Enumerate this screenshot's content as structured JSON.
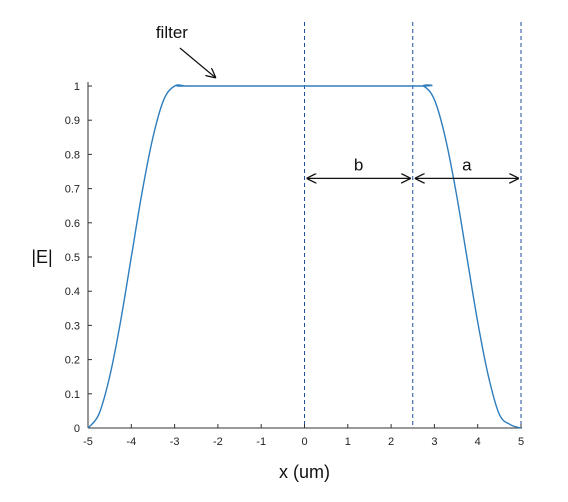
{
  "chart_data": {
    "type": "line",
    "xlabel": "x (um)",
    "ylabel": "|E|",
    "xlim": [
      -5,
      5
    ],
    "ylim": [
      0,
      1
    ],
    "xticks": [
      "-5",
      "-4",
      "-3",
      "-2",
      "-1",
      "0",
      "1",
      "2",
      "3",
      "4",
      "5"
    ],
    "yticks": [
      "0",
      "0.1",
      "0.2",
      "0.3",
      "0.4",
      "0.5",
      "0.6",
      "0.7",
      "0.8",
      "0.9",
      "1"
    ],
    "grid": false,
    "series": [
      {
        "color": "#2e7dbd",
        "x": [
          -5,
          -4.75,
          -4.5,
          -4.25,
          -4,
          -3.75,
          -3.5,
          -3.25,
          -3,
          -2.75,
          -2.5,
          2.5,
          2.75,
          3,
          3.25,
          3.5,
          3.75,
          4,
          4.25,
          4.5,
          4.75,
          5
        ],
        "y": [
          0,
          0.04,
          0.15,
          0.31,
          0.5,
          0.69,
          0.85,
          0.96,
          1,
          1,
          1,
          1,
          1,
          0.96,
          0.85,
          0.69,
          0.5,
          0.31,
          0.15,
          0.04,
          0.01,
          0
        ]
      }
    ],
    "vlines": {
      "x": [
        0,
        2.5,
        5
      ],
      "color": "#1f4e9a",
      "style": "dashed"
    },
    "annotations": [
      {
        "text": "filter",
        "points_to": {
          "x": -2,
          "y": 1
        }
      },
      {
        "text": "b",
        "span": [
          0,
          2.5
        ],
        "y": 0.73
      },
      {
        "text": "a",
        "span": [
          2.5,
          5
        ],
        "y": 0.73
      }
    ]
  }
}
